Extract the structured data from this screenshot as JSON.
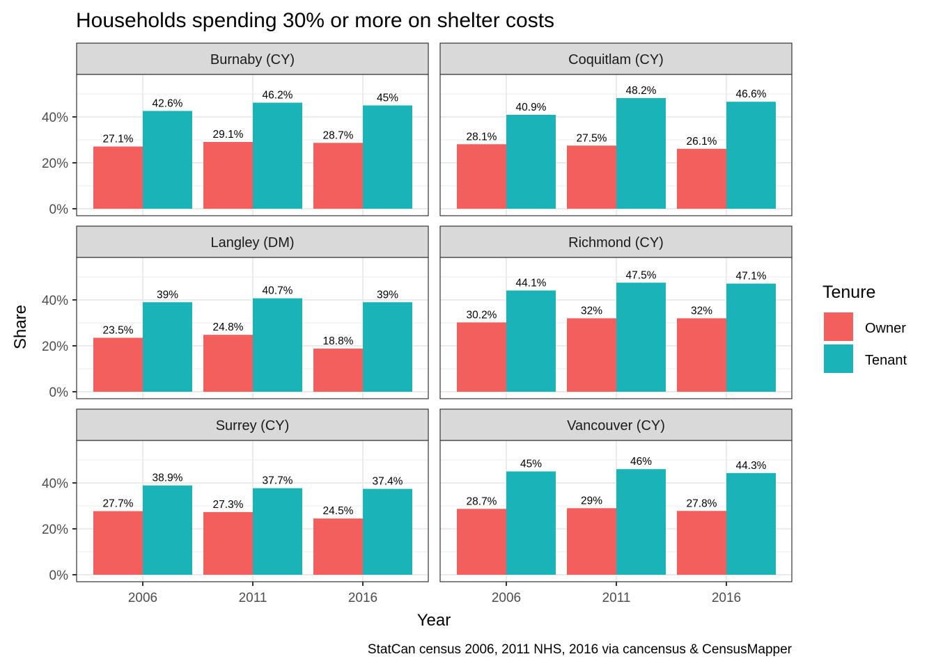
{
  "chart_data": {
    "type": "bar",
    "title": "Households spending 30% or more on shelter costs",
    "xlabel": "Year",
    "ylabel": "Share",
    "caption": "StatCan census 2006, 2011 NHS, 2016 via cancensus & CensusMapper",
    "categories": [
      "2006",
      "2011",
      "2016"
    ],
    "y_ticks": [
      "0%",
      "20%",
      "40%"
    ],
    "y_tick_values": [
      0,
      20,
      40
    ],
    "ylim": [
      0,
      58.7
    ],
    "grid": true,
    "legend": {
      "title": "Tenure",
      "placement": "right",
      "entries": [
        {
          "name": "Owner",
          "color": "#F25F5C"
        },
        {
          "name": "Tenant",
          "color": "#19B3B8"
        }
      ]
    },
    "facets": [
      {
        "name": "Burnaby (CY)",
        "series": [
          {
            "name": "Owner",
            "values": [
              27.1,
              29.1,
              28.7
            ],
            "labels": [
              "27.1%",
              "29.1%",
              "28.7%"
            ]
          },
          {
            "name": "Tenant",
            "values": [
              42.6,
              46.2,
              45.0
            ],
            "labels": [
              "42.6%",
              "46.2%",
              "45%"
            ]
          }
        ]
      },
      {
        "name": "Coquitlam (CY)",
        "series": [
          {
            "name": "Owner",
            "values": [
              28.1,
              27.5,
              26.1
            ],
            "labels": [
              "28.1%",
              "27.5%",
              "26.1%"
            ]
          },
          {
            "name": "Tenant",
            "values": [
              40.9,
              48.2,
              46.6
            ],
            "labels": [
              "40.9%",
              "48.2%",
              "46.6%"
            ]
          }
        ]
      },
      {
        "name": "Langley (DM)",
        "series": [
          {
            "name": "Owner",
            "values": [
              23.5,
              24.8,
              18.8
            ],
            "labels": [
              "23.5%",
              "24.8%",
              "18.8%"
            ]
          },
          {
            "name": "Tenant",
            "values": [
              39.0,
              40.7,
              39.0
            ],
            "labels": [
              "39%",
              "40.7%",
              "39%"
            ]
          }
        ]
      },
      {
        "name": "Richmond (CY)",
        "series": [
          {
            "name": "Owner",
            "values": [
              30.2,
              32.0,
              32.0
            ],
            "labels": [
              "30.2%",
              "32%",
              "32%"
            ]
          },
          {
            "name": "Tenant",
            "values": [
              44.1,
              47.5,
              47.1
            ],
            "labels": [
              "44.1%",
              "47.5%",
              "47.1%"
            ]
          }
        ]
      },
      {
        "name": "Surrey (CY)",
        "series": [
          {
            "name": "Owner",
            "values": [
              27.7,
              27.3,
              24.5
            ],
            "labels": [
              "27.7%",
              "27.3%",
              "24.5%"
            ]
          },
          {
            "name": "Tenant",
            "values": [
              38.9,
              37.7,
              37.4
            ],
            "labels": [
              "38.9%",
              "37.7%",
              "37.4%"
            ]
          }
        ]
      },
      {
        "name": "Vancouver (CY)",
        "series": [
          {
            "name": "Owner",
            "values": [
              28.7,
              29.0,
              27.8
            ],
            "labels": [
              "28.7%",
              "29%",
              "27.8%"
            ]
          },
          {
            "name": "Tenant",
            "values": [
              45.0,
              46.0,
              44.3
            ],
            "labels": [
              "45%",
              "46%",
              "44.3%"
            ]
          }
        ]
      }
    ]
  }
}
